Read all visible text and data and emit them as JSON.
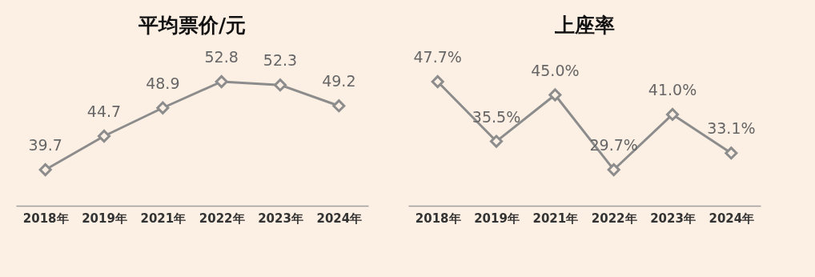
{
  "chart_data": [
    {
      "type": "line",
      "title": "平均票价/元",
      "categories": [
        "2018年",
        "2019年",
        "2021年",
        "2022年",
        "2023年",
        "2024年"
      ],
      "values": [
        39.7,
        44.7,
        48.9,
        52.8,
        52.3,
        49.2
      ],
      "color": "#8c8c8c",
      "marker": "diamond",
      "data_labels": true
    },
    {
      "type": "line",
      "title": "上座率",
      "categories": [
        "2018年",
        "2019年",
        "2021年",
        "2022年",
        "2023年",
        "2024年"
      ],
      "values": [
        47.7,
        35.5,
        45.0,
        29.7,
        41.0,
        33.1
      ],
      "value_labels": [
        "47.7%",
        "35.5%",
        "45.0%",
        "29.7%",
        "41.0%",
        "33.1%"
      ],
      "color": "#8c8c8c",
      "marker": "diamond"
    }
  ]
}
